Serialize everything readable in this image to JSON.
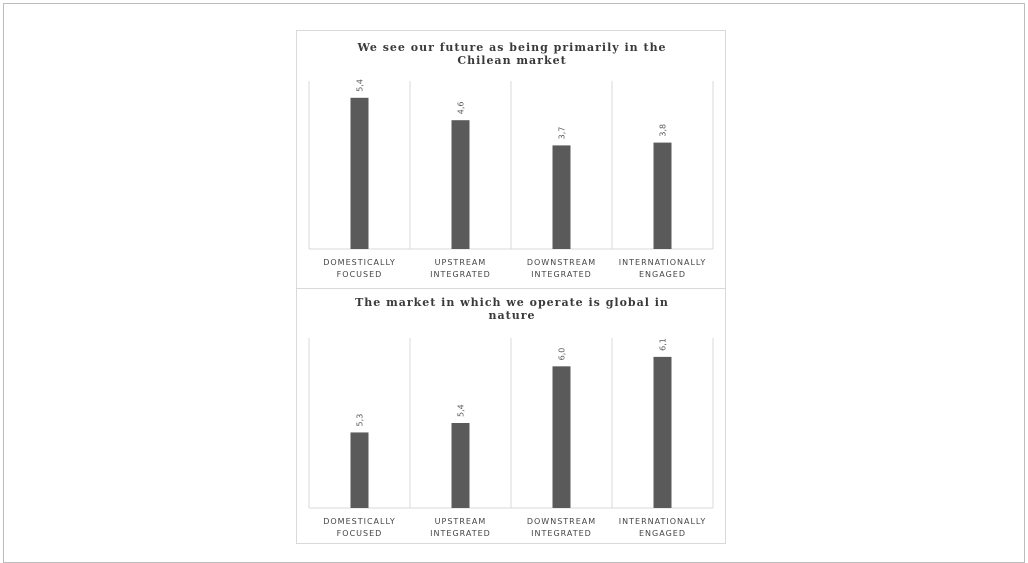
{
  "chart_data": [
    {
      "type": "bar",
      "title": "We see our future as being primarily in the Chilean market",
      "title_lines": [
        "We see our future as being primarily in the",
        "Chilean market"
      ],
      "categories": [
        "DOMESTICALLY FOCUSED",
        "UPSTREAM INTEGRATED",
        "DOWNSTREAM INTEGRATED",
        "INTERNATIONALLY ENGAGED"
      ],
      "category_lines": [
        [
          "DOMESTICALLY",
          "FOCUSED"
        ],
        [
          "UPSTREAM",
          "INTEGRATED"
        ],
        [
          "DOWNSTREAM",
          "INTEGRATED"
        ],
        [
          "INTERNATIONALLY",
          "ENGAGED"
        ]
      ],
      "values": [
        5.4,
        4.6,
        3.7,
        3.8
      ],
      "value_labels": [
        "5,4",
        "4,6",
        "3,7",
        "3,8"
      ],
      "ylim": [
        0,
        6
      ],
      "bar_color": "#5a5a5a",
      "grid": false,
      "xlabel": "",
      "ylabel": ""
    },
    {
      "type": "bar",
      "title": "The market in which we operate is global in nature",
      "title_lines": [
        "The market in which we operate is global in",
        "nature"
      ],
      "categories": [
        "DOMESTICALLY FOCUSED",
        "UPSTREAM INTEGRATED",
        "DOWNSTREAM INTEGRATED",
        "INTERNATIONALLY ENGAGED"
      ],
      "category_lines": [
        [
          "DOMESTICALLY",
          "FOCUSED"
        ],
        [
          "UPSTREAM",
          "INTEGRATED"
        ],
        [
          "DOWNSTREAM",
          "INTEGRATED"
        ],
        [
          "INTERNATIONALLY",
          "ENGAGED"
        ]
      ],
      "values": [
        5.3,
        5.4,
        6.0,
        6.1
      ],
      "value_labels": [
        "5,3",
        "5,4",
        "6,0",
        "6,1"
      ],
      "ylim": [
        4.5,
        6.3
      ],
      "bar_color": "#5a5a5a",
      "grid": false,
      "xlabel": "",
      "ylabel": ""
    }
  ]
}
